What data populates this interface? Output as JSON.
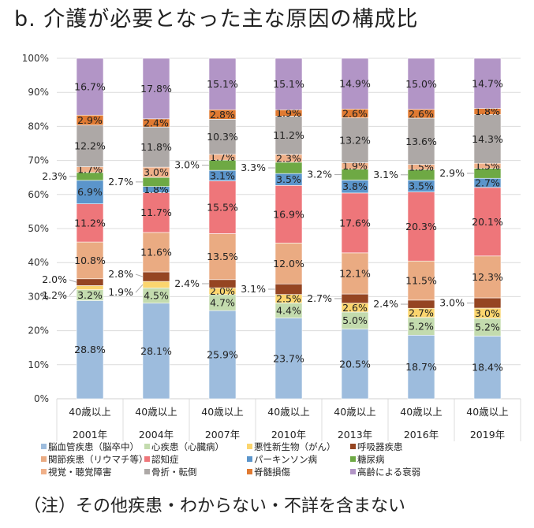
{
  "title": "b.  介護が必要となった主な原因の構成比",
  "note": "（注）その他疾患・わからない・不詳を含まない",
  "chart_data": {
    "type": "bar",
    "stacked": "percent",
    "title": "b.  介護が必要となった主な原因の構成比",
    "group_label": "40歳以上",
    "categories": [
      "2001年",
      "2004年",
      "2007年",
      "2010年",
      "2013年",
      "2016年",
      "2019年"
    ],
    "y_ticks": [
      "0%",
      "10%",
      "20%",
      "30%",
      "40%",
      "50%",
      "60%",
      "70%",
      "80%",
      "90%",
      "100%"
    ],
    "ylim": [
      0,
      100
    ],
    "grid": true,
    "legend_position": "bottom",
    "series": [
      {
        "name": "脳血管疾患（脳卒中）",
        "color": "#9dbcdd",
        "values": [
          28.8,
          28.1,
          25.9,
          23.7,
          20.5,
          18.7,
          18.4
        ]
      },
      {
        "name": "心疾患（心臓病）",
        "color": "#c3dbae",
        "values": [
          3.2,
          4.5,
          4.7,
          4.4,
          5.0,
          5.2,
          5.2
        ]
      },
      {
        "name": "悪性新生物（がん）",
        "color": "#fbd56e",
        "values": [
          1.2,
          1.9,
          2.0,
          2.5,
          2.6,
          2.7,
          3.0
        ]
      },
      {
        "name": "呼吸器疾患",
        "color": "#954522",
        "values": [
          2.0,
          2.8,
          2.4,
          3.1,
          2.7,
          2.4,
          3.0
        ]
      },
      {
        "name": "関節疾患（リウマチ等）",
        "color": "#eaab82",
        "values": [
          10.8,
          11.6,
          13.5,
          12.0,
          12.1,
          11.5,
          12.3
        ]
      },
      {
        "name": "認知症",
        "color": "#ee767a",
        "values": [
          11.2,
          11.7,
          15.5,
          16.9,
          17.6,
          20.3,
          20.1
        ]
      },
      {
        "name": "パーキンソン病",
        "color": "#5b95cb",
        "values": [
          6.9,
          1.8,
          3.1,
          3.5,
          3.8,
          3.5,
          2.7
        ]
      },
      {
        "name": "糖尿病",
        "color": "#6ea944",
        "values": [
          2.3,
          2.7,
          3.0,
          3.3,
          3.2,
          3.1,
          2.9
        ]
      },
      {
        "name": "視覚・聴覚障害",
        "color": "#f0b089",
        "values": [
          1.7,
          3.0,
          1.7,
          2.3,
          1.9,
          1.5,
          1.5
        ]
      },
      {
        "name": "骨折・転倒",
        "color": "#ada8a6",
        "values": [
          12.2,
          11.8,
          10.3,
          11.2,
          13.2,
          13.6,
          14.3
        ]
      },
      {
        "name": "脊髄損傷",
        "color": "#e07a32",
        "values": [
          2.9,
          2.4,
          2.8,
          1.9,
          2.6,
          2.6,
          1.8
        ]
      },
      {
        "name": "高齢による衰弱",
        "color": "#b295c6",
        "values": [
          16.7,
          17.8,
          15.1,
          15.1,
          14.9,
          15.0,
          14.7
        ]
      }
    ]
  }
}
